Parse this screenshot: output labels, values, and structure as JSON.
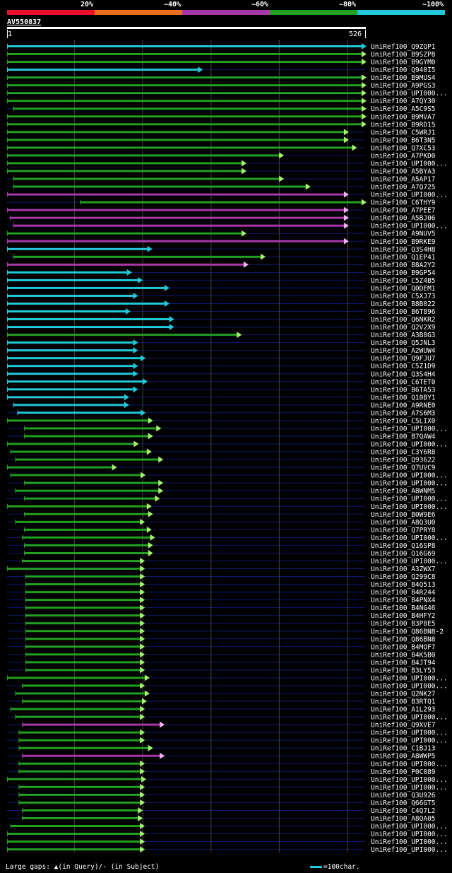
{
  "query": {
    "name": "AV550837",
    "start": "1",
    "end": "526",
    "length": 526
  },
  "legend": {
    "segments": [
      {
        "label": "20%",
        "color": "#e8102a"
      },
      {
        "label": "~40%",
        "color": "#e8701a"
      },
      {
        "label": "~60%",
        "color": "#a838a8"
      },
      {
        "label": "~80%",
        "color": "#22a020"
      },
      {
        "label": "~100%",
        "color": "#22c8d8"
      }
    ]
  },
  "colors": {
    "cyan": "#22c8d8",
    "green": "#22a020",
    "magenta": "#a838a8",
    "arrow_green": "#a8f070",
    "arrow_cyan": "#22c8d8",
    "arrow_magenta": "#f0b0f0",
    "row_line": "#101870",
    "grid": "#444444"
  },
  "chart_data": {
    "type": "alignment-overview",
    "x_range": [
      1,
      526
    ],
    "gridlines": [
      100,
      200,
      300,
      400,
      500
    ],
    "hits": [
      {
        "label": "UniRef100_Q9ZQP1",
        "start": 1,
        "end": 526,
        "color": "cyan"
      },
      {
        "label": "UniRef100_B9SZP8",
        "start": 1,
        "end": 526,
        "color": "green"
      },
      {
        "label": "UniRef100_B9GYM0",
        "start": 1,
        "end": 526,
        "color": "green"
      },
      {
        "label": "UniRef100_Q940I5",
        "start": 1,
        "end": 286,
        "color": "cyan"
      },
      {
        "label": "UniRef100_B9MUS4",
        "start": 1,
        "end": 526,
        "color": "green"
      },
      {
        "label": "UniRef100_A9PGS3",
        "start": 1,
        "end": 526,
        "color": "green"
      },
      {
        "label": "UniRef100_UPI000...",
        "start": 1,
        "end": 526,
        "color": "green"
      },
      {
        "label": "UniRef100_A7QY30",
        "start": 1,
        "end": 526,
        "color": "green"
      },
      {
        "label": "UniRef100_A5C9S5",
        "start": 10,
        "end": 526,
        "color": "green"
      },
      {
        "label": "UniRef100_B9MVA7",
        "start": 1,
        "end": 526,
        "color": "green"
      },
      {
        "label": "UniRef100_B9RD15",
        "start": 1,
        "end": 526,
        "color": "green"
      },
      {
        "label": "UniRef100_C5WRJ1",
        "start": 1,
        "end": 500,
        "color": "green"
      },
      {
        "label": "UniRef100_B6T3N5",
        "start": 1,
        "end": 500,
        "color": "green"
      },
      {
        "label": "UniRef100_Q7XC53",
        "start": 1,
        "end": 512,
        "color": "green"
      },
      {
        "label": "UniRef100_A7PKD0",
        "start": 1,
        "end": 405,
        "color": "green"
      },
      {
        "label": "UniRef100_UPI000...",
        "start": 1,
        "end": 350,
        "color": "green"
      },
      {
        "label": "UniRef100_A5BYA3",
        "start": 1,
        "end": 350,
        "color": "green"
      },
      {
        "label": "UniRef100_A5AP17",
        "start": 10,
        "end": 405,
        "color": "green"
      },
      {
        "label": "UniRef100_A7Q725",
        "start": 10,
        "end": 444,
        "color": "green"
      },
      {
        "label": "UniRef100_UPI000...",
        "start": 1,
        "end": 500,
        "color": "magenta"
      },
      {
        "label": "UniRef100_C6THY9",
        "start": 108,
        "end": 526,
        "color": "green"
      },
      {
        "label": "UniRef100_A7PEE7",
        "start": 1,
        "end": 500,
        "color": "magenta"
      },
      {
        "label": "UniRef100_A5BJ06",
        "start": 5,
        "end": 500,
        "color": "magenta"
      },
      {
        "label": "UniRef100_UPI000...",
        "start": 10,
        "end": 500,
        "color": "magenta"
      },
      {
        "label": "UniRef100_A9NUV5",
        "start": 1,
        "end": 350,
        "color": "green"
      },
      {
        "label": "UniRef100_B9RKE9",
        "start": 1,
        "end": 500,
        "color": "magenta"
      },
      {
        "label": "UniRef100_Q3S4H8",
        "start": 1,
        "end": 212,
        "color": "cyan"
      },
      {
        "label": "UniRef100_Q1EP41",
        "start": 10,
        "end": 378,
        "color": "green"
      },
      {
        "label": "UniRef100_B8A2Y2",
        "start": 1,
        "end": 353,
        "color": "magenta"
      },
      {
        "label": "UniRef100_B9GP54",
        "start": 1,
        "end": 182,
        "color": "cyan"
      },
      {
        "label": "UniRef100_C5Z4B5",
        "start": 1,
        "end": 198,
        "color": "cyan"
      },
      {
        "label": "UniRef100_Q0DEM1",
        "start": 1,
        "end": 237,
        "color": "cyan"
      },
      {
        "label": "UniRef100_C5XJ73",
        "start": 1,
        "end": 191,
        "color": "cyan"
      },
      {
        "label": "UniRef100_B8B022",
        "start": 1,
        "end": 237,
        "color": "cyan"
      },
      {
        "label": "UniRef100_B6T896",
        "start": 1,
        "end": 180,
        "color": "cyan"
      },
      {
        "label": "UniRef100_Q6NKR2",
        "start": 1,
        "end": 244,
        "color": "cyan"
      },
      {
        "label": "UniRef100_Q2V2X9",
        "start": 1,
        "end": 244,
        "color": "cyan"
      },
      {
        "label": "UniRef100_A3B8G3",
        "start": 1,
        "end": 343,
        "color": "green"
      },
      {
        "label": "UniRef100_Q5JNL3",
        "start": 1,
        "end": 191,
        "color": "cyan"
      },
      {
        "label": "UniRef100_A2WUW4",
        "start": 1,
        "end": 191,
        "color": "cyan"
      },
      {
        "label": "UniRef100_Q9FJU7",
        "start": 1,
        "end": 202,
        "color": "cyan"
      },
      {
        "label": "UniRef100_C5Z1D9",
        "start": 1,
        "end": 191,
        "color": "cyan"
      },
      {
        "label": "UniRef100_Q3S4H4",
        "start": 1,
        "end": 191,
        "color": "cyan"
      },
      {
        "label": "UniRef100_C6TET0",
        "start": 1,
        "end": 205,
        "color": "cyan"
      },
      {
        "label": "UniRef100_B6TA53",
        "start": 1,
        "end": 191,
        "color": "cyan"
      },
      {
        "label": "UniRef100_Q10BY1",
        "start": 1,
        "end": 178,
        "color": "cyan"
      },
      {
        "label": "UniRef100_A9RNE0",
        "start": 10,
        "end": 178,
        "color": "cyan"
      },
      {
        "label": "UniRef100_A7S6M3",
        "start": 16,
        "end": 202,
        "color": "cyan"
      },
      {
        "label": "UniRef100_C5LIX0",
        "start": 1,
        "end": 213,
        "color": "green"
      },
      {
        "label": "UniRef100_UPI000...",
        "start": 26,
        "end": 225,
        "color": "green"
      },
      {
        "label": "UniRef100_B7QAW4",
        "start": 26,
        "end": 213,
        "color": "green"
      },
      {
        "label": "UniRef100_UPI000...",
        "start": 1,
        "end": 192,
        "color": "green"
      },
      {
        "label": "UniRef100_C3Y6R8",
        "start": 6,
        "end": 211,
        "color": "green"
      },
      {
        "label": "UniRef100_Q93622",
        "start": 13,
        "end": 228,
        "color": "green"
      },
      {
        "label": "UniRef100_Q7UVC9",
        "start": 1,
        "end": 160,
        "color": "green"
      },
      {
        "label": "UniRef100_UPI000...",
        "start": 6,
        "end": 202,
        "color": "green"
      },
      {
        "label": "UniRef100_UPI000...",
        "start": 26,
        "end": 228,
        "color": "green"
      },
      {
        "label": "UniRef100_A8WNM5",
        "start": 13,
        "end": 228,
        "color": "green"
      },
      {
        "label": "UniRef100_UPI000...",
        "start": 26,
        "end": 223,
        "color": "green"
      },
      {
        "label": "UniRef100_UPI000...",
        "start": 1,
        "end": 211,
        "color": "green"
      },
      {
        "label": "UniRef100_B0W9E6",
        "start": 26,
        "end": 213,
        "color": "green"
      },
      {
        "label": "UniRef100_A8Q3U0",
        "start": 13,
        "end": 201,
        "color": "green"
      },
      {
        "label": "UniRef100_Q7PRY8",
        "start": 26,
        "end": 211,
        "color": "green"
      },
      {
        "label": "UniRef100_UPI000...",
        "start": 23,
        "end": 216,
        "color": "green"
      },
      {
        "label": "UniRef100_Q16SP8",
        "start": 26,
        "end": 213,
        "color": "green"
      },
      {
        "label": "UniRef100_Q16G69",
        "start": 26,
        "end": 213,
        "color": "green"
      },
      {
        "label": "UniRef100_UPI000...",
        "start": 23,
        "end": 201,
        "color": "green"
      },
      {
        "label": "UniRef100_A3ZWX7",
        "start": 1,
        "end": 201,
        "color": "green"
      },
      {
        "label": "UniRef100_Q299C8",
        "start": 28,
        "end": 201,
        "color": "green"
      },
      {
        "label": "UniRef100_B4Q513",
        "start": 28,
        "end": 201,
        "color": "green"
      },
      {
        "label": "UniRef100_B4R244",
        "start": 28,
        "end": 201,
        "color": "green"
      },
      {
        "label": "UniRef100_B4PNX4",
        "start": 28,
        "end": 201,
        "color": "green"
      },
      {
        "label": "UniRef100_B4NG46",
        "start": 28,
        "end": 201,
        "color": "green"
      },
      {
        "label": "UniRef100_B4HFY2",
        "start": 28,
        "end": 201,
        "color": "green"
      },
      {
        "label": "UniRef100_B3P8E5",
        "start": 28,
        "end": 201,
        "color": "green"
      },
      {
        "label": "UniRef100_Q86BN8-2",
        "start": 28,
        "end": 201,
        "color": "green"
      },
      {
        "label": "UniRef100_Q86BN8",
        "start": 28,
        "end": 201,
        "color": "green"
      },
      {
        "label": "UniRef100_B4MOF7",
        "start": 28,
        "end": 201,
        "color": "green"
      },
      {
        "label": "UniRef100_B4K5B0",
        "start": 28,
        "end": 201,
        "color": "green"
      },
      {
        "label": "UniRef100_B4JT94",
        "start": 28,
        "end": 201,
        "color": "green"
      },
      {
        "label": "UniRef100_B3LY53",
        "start": 28,
        "end": 201,
        "color": "green"
      },
      {
        "label": "UniRef100_UPI000...",
        "start": 1,
        "end": 208,
        "color": "green"
      },
      {
        "label": "UniRef100_UPI000...",
        "start": 23,
        "end": 201,
        "color": "green"
      },
      {
        "label": "UniRef100_Q2NK27",
        "start": 13,
        "end": 208,
        "color": "green"
      },
      {
        "label": "UniRef100_B3RTQ1",
        "start": 23,
        "end": 204,
        "color": "green"
      },
      {
        "label": "UniRef100_A1L293",
        "start": 6,
        "end": 201,
        "color": "green"
      },
      {
        "label": "UniRef100_UPI000...",
        "start": 13,
        "end": 201,
        "color": "green"
      },
      {
        "label": "UniRef100_Q9XVE7",
        "start": 23,
        "end": 230,
        "color": "magenta"
      },
      {
        "label": "UniRef100_UPI000...",
        "start": 18,
        "end": 201,
        "color": "green"
      },
      {
        "label": "UniRef100_UPI000...",
        "start": 18,
        "end": 201,
        "color": "green"
      },
      {
        "label": "UniRef100_C1BJ13",
        "start": 18,
        "end": 213,
        "color": "green"
      },
      {
        "label": "UniRef100_A8WWP5",
        "start": 23,
        "end": 230,
        "color": "magenta"
      },
      {
        "label": "UniRef100_UPI000...",
        "start": 18,
        "end": 201,
        "color": "green"
      },
      {
        "label": "UniRef100_P0C089",
        "start": 18,
        "end": 201,
        "color": "green"
      },
      {
        "label": "UniRef100_UPI000...",
        "start": 1,
        "end": 203,
        "color": "green"
      },
      {
        "label": "UniRef100_UPI000...",
        "start": 18,
        "end": 201,
        "color": "green"
      },
      {
        "label": "UniRef100_Q3U926",
        "start": 18,
        "end": 201,
        "color": "green"
      },
      {
        "label": "UniRef100_Q66GT5",
        "start": 18,
        "end": 201,
        "color": "green"
      },
      {
        "label": "UniRef100_C4Q7L2",
        "start": 23,
        "end": 198,
        "color": "green"
      },
      {
        "label": "UniRef100_A8QA05",
        "start": 23,
        "end": 198,
        "color": "green"
      },
      {
        "label": "UniRef100_UPI000...",
        "start": 6,
        "end": 201,
        "color": "green"
      },
      {
        "label": "UniRef100_UPI000...",
        "start": 1,
        "end": 201,
        "color": "green"
      },
      {
        "label": "UniRef100_UPI000...",
        "start": 1,
        "end": 201,
        "color": "green"
      },
      {
        "label": "UniRef100_UPI000...",
        "start": 1,
        "end": 201,
        "color": "green"
      }
    ]
  },
  "footer": {
    "gaps_text": "Large gaps: ▲(in Query)/- (in Subject)",
    "scale_text": "=100char."
  }
}
